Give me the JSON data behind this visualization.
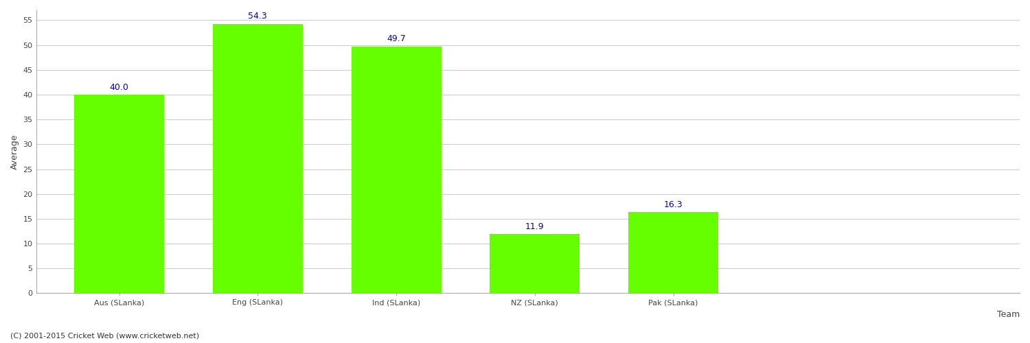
{
  "categories": [
    "Aus (SLanka)",
    "Eng (SLanka)",
    "Ind (SLanka)",
    "NZ (SLanka)",
    "Pak (SLanka)"
  ],
  "values": [
    40.0,
    54.3,
    49.7,
    11.9,
    16.3
  ],
  "bar_color": "#66ff00",
  "bar_edge_color": "none",
  "value_label_color": "#0000cc",
  "value_label_fontsize": 9,
  "xlabel": "Team",
  "ylabel": "Average",
  "ylim": [
    0,
    57
  ],
  "yticks": [
    0,
    5,
    10,
    15,
    20,
    25,
    30,
    35,
    40,
    45,
    50,
    55
  ],
  "grid_color": "#cccccc",
  "background_color": "#ffffff",
  "axis_label_fontsize": 9,
  "tick_fontsize": 8,
  "footer_text": "(C) 2001-2015 Cricket Web (www.cricketweb.net)",
  "footer_fontsize": 8,
  "footer_color": "#333333",
  "bar_width": 0.65,
  "xlim_left": -0.6,
  "xlim_right": 6.5
}
